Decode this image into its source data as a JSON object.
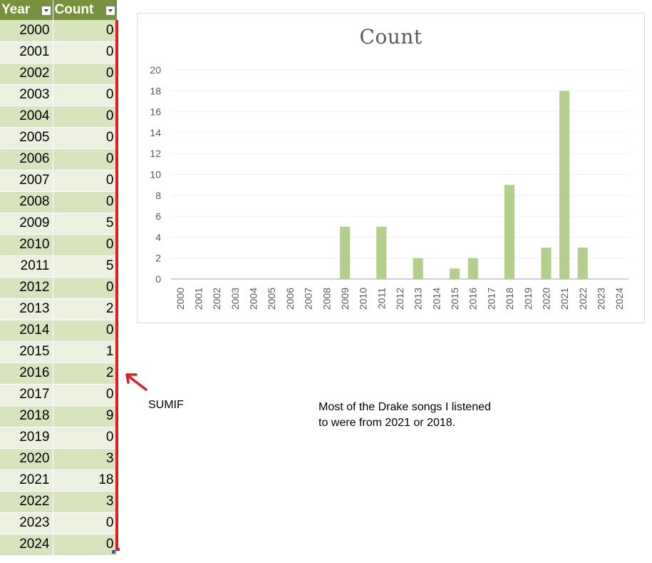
{
  "table": {
    "headers": {
      "year": "Year",
      "count": "Count"
    },
    "rows": [
      {
        "year": "2000",
        "count": "0"
      },
      {
        "year": "2001",
        "count": "0"
      },
      {
        "year": "2002",
        "count": "0"
      },
      {
        "year": "2003",
        "count": "0"
      },
      {
        "year": "2004",
        "count": "0"
      },
      {
        "year": "2005",
        "count": "0"
      },
      {
        "year": "2006",
        "count": "0"
      },
      {
        "year": "2007",
        "count": "0"
      },
      {
        "year": "2008",
        "count": "0"
      },
      {
        "year": "2009",
        "count": "5"
      },
      {
        "year": "2010",
        "count": "0"
      },
      {
        "year": "2011",
        "count": "5"
      },
      {
        "year": "2012",
        "count": "0"
      },
      {
        "year": "2013",
        "count": "2"
      },
      {
        "year": "2014",
        "count": "0"
      },
      {
        "year": "2015",
        "count": "1"
      },
      {
        "year": "2016",
        "count": "2"
      },
      {
        "year": "2017",
        "count": "0"
      },
      {
        "year": "2018",
        "count": "9"
      },
      {
        "year": "2019",
        "count": "0"
      },
      {
        "year": "2020",
        "count": "3"
      },
      {
        "year": "2021",
        "count": "18"
      },
      {
        "year": "2022",
        "count": "3"
      },
      {
        "year": "2023",
        "count": "0"
      },
      {
        "year": "2024",
        "count": "0"
      }
    ]
  },
  "annotations": {
    "sumif": "SUMIF",
    "note_line1": "Most of the Drake songs I listened",
    "note_line2": "to were from 2021 or 2018."
  },
  "colors": {
    "header_bg": "#76923c",
    "row_odd": "#d8e4bc",
    "row_even": "#ebf1de",
    "bar": "#b3cf8b",
    "accent_red": "#e31b23"
  },
  "chart_data": {
    "type": "bar",
    "title": "Count",
    "categories": [
      "2000",
      "2001",
      "2002",
      "2003",
      "2004",
      "2005",
      "2006",
      "2007",
      "2008",
      "2009",
      "2010",
      "2011",
      "2012",
      "2013",
      "2014",
      "2015",
      "2016",
      "2017",
      "2018",
      "2019",
      "2020",
      "2021",
      "2022",
      "2023",
      "2024"
    ],
    "values": [
      0,
      0,
      0,
      0,
      0,
      0,
      0,
      0,
      0,
      5,
      0,
      5,
      0,
      2,
      0,
      1,
      2,
      0,
      9,
      0,
      3,
      18,
      3,
      0,
      0
    ],
    "ylim": [
      0,
      20
    ],
    "yticks": [
      0,
      2,
      4,
      6,
      8,
      10,
      12,
      14,
      16,
      18,
      20
    ],
    "grid": true,
    "legend": "none"
  }
}
